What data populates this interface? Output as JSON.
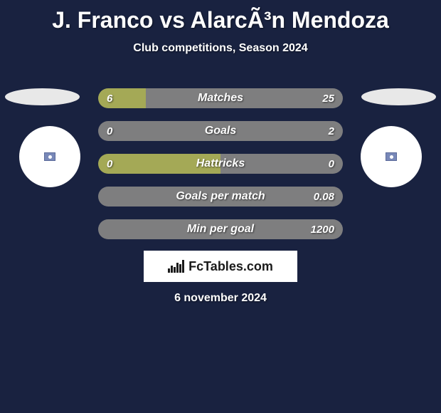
{
  "title": "J. Franco vs AlarcÃ³n Mendoza",
  "subtitle": "Club competitions, Season 2024",
  "date": "6 november 2024",
  "logo_text": "FcTables.com",
  "colors": {
    "background": "#192240",
    "left_bar": "#a4a956",
    "right_bar": "#7e7e7f",
    "text": "#ffffff",
    "oval": "#e8e8e8",
    "circle": "#ffffff"
  },
  "rows": [
    {
      "label": "Matches",
      "left": "6",
      "right": "25",
      "left_pct": 19.4,
      "right_pct": 80.6
    },
    {
      "label": "Goals",
      "left": "0",
      "right": "2",
      "left_pct": 0.0,
      "right_pct": 100.0
    },
    {
      "label": "Hattricks",
      "left": "0",
      "right": "0",
      "left_pct": 50.0,
      "right_pct": 50.0
    },
    {
      "label": "Goals per match",
      "left": "",
      "right": "0.08",
      "left_pct": 0.0,
      "right_pct": 100.0
    },
    {
      "label": "Min per goal",
      "left": "",
      "right": "1200",
      "left_pct": 0.0,
      "right_pct": 100.0
    }
  ]
}
